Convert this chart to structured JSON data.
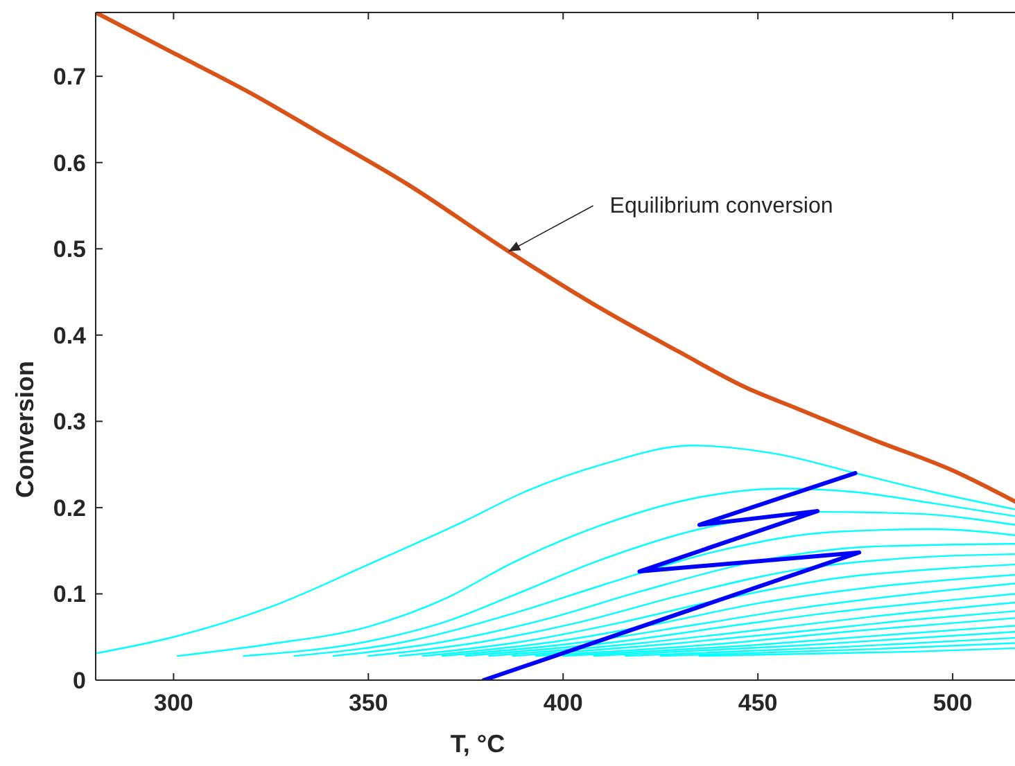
{
  "chart_data": {
    "type": "line",
    "xlabel": "T, °C",
    "ylabel": "Conversion",
    "xlim": [
      280,
      516
    ],
    "ylim": [
      0,
      0.774
    ],
    "xticks": [
      300,
      350,
      400,
      450,
      500
    ],
    "yticks": [
      0,
      0.1,
      0.2,
      0.3,
      0.4,
      0.5,
      0.6,
      0.7
    ],
    "grid": false,
    "marker": "none",
    "line_style": "solid",
    "annotations": [
      {
        "text": "Equilibrium conversion",
        "x": 386,
        "y": 0.497
      }
    ],
    "series": [
      {
        "color": "#00ffff",
        "x": [
          280,
          300,
          325,
          350,
          375,
          390,
          410,
          433,
          455,
          475,
          495,
          516
        ],
        "values": [
          0.031,
          0.05,
          0.085,
          0.134,
          0.185,
          0.218,
          0.25,
          0.272,
          0.262,
          0.24,
          0.218,
          0.198
        ]
      },
      {
        "color": "#00ffff",
        "x": [
          301,
          325,
          350,
          370,
          387,
          410,
          435,
          456,
          475,
          495,
          516
        ],
        "values": [
          0.028,
          0.042,
          0.062,
          0.095,
          0.136,
          0.18,
          0.212,
          0.222,
          0.218,
          0.205,
          0.19
        ]
      },
      {
        "color": "#00ffff",
        "x": [
          318,
          350,
          370,
          387,
          410,
          435,
          466,
          490,
          516
        ],
        "values": [
          0.028,
          0.045,
          0.068,
          0.098,
          0.14,
          0.175,
          0.195,
          0.193,
          0.18
        ]
      },
      {
        "color": "#00ffff",
        "x": [
          331,
          360,
          387,
          410,
          440,
          470,
          495,
          516
        ],
        "values": [
          0.028,
          0.045,
          0.077,
          0.11,
          0.15,
          0.172,
          0.175,
          0.168
        ]
      },
      {
        "color": "#00ffff",
        "x": [
          341,
          370,
          395,
          420,
          450,
          480,
          516
        ],
        "values": [
          0.028,
          0.045,
          0.07,
          0.103,
          0.138,
          0.155,
          0.158
        ]
      },
      {
        "color": "#00ffff",
        "x": [
          350,
          380,
          405,
          430,
          460,
          490,
          516
        ],
        "values": [
          0.028,
          0.045,
          0.068,
          0.098,
          0.128,
          0.142,
          0.146
        ]
      },
      {
        "color": "#00ffff",
        "x": [
          358,
          390,
          415,
          440,
          470,
          500,
          516
        ],
        "values": [
          0.028,
          0.045,
          0.067,
          0.093,
          0.118,
          0.13,
          0.134
        ]
      },
      {
        "color": "#00ffff",
        "x": [
          364,
          400,
          425,
          450,
          480,
          516
        ],
        "values": [
          0.028,
          0.046,
          0.066,
          0.089,
          0.108,
          0.122
        ]
      },
      {
        "color": "#00ffff",
        "x": [
          369,
          405,
          435,
          460,
          490,
          516
        ],
        "values": [
          0.028,
          0.044,
          0.065,
          0.083,
          0.1,
          0.112
        ]
      },
      {
        "color": "#00ffff",
        "x": [
          375,
          415,
          445,
          470,
          500,
          516
        ],
        "values": [
          0.028,
          0.045,
          0.064,
          0.079,
          0.093,
          0.1
        ]
      },
      {
        "color": "#00ffff",
        "x": [
          381,
          420,
          450,
          480,
          516
        ],
        "values": [
          0.028,
          0.043,
          0.058,
          0.074,
          0.09
        ]
      },
      {
        "color": "#00ffff",
        "x": [
          387,
          430,
          460,
          490,
          516
        ],
        "values": [
          0.028,
          0.043,
          0.056,
          0.07,
          0.08
        ]
      },
      {
        "color": "#00ffff",
        "x": [
          393,
          440,
          475,
          516
        ],
        "values": [
          0.028,
          0.042,
          0.057,
          0.072
        ]
      },
      {
        "color": "#00ffff",
        "x": [
          400,
          450,
          485,
          516
        ],
        "values": [
          0.028,
          0.041,
          0.053,
          0.063
        ]
      },
      {
        "color": "#00ffff",
        "x": [
          408,
          460,
          516
        ],
        "values": [
          0.028,
          0.04,
          0.056
        ]
      },
      {
        "color": "#00ffff",
        "x": [
          416,
          470,
          516
        ],
        "values": [
          0.028,
          0.038,
          0.049
        ]
      },
      {
        "color": "#00ffff",
        "x": [
          425,
          480,
          516
        ],
        "values": [
          0.028,
          0.036,
          0.043
        ]
      },
      {
        "color": "#00ffff",
        "x": [
          435,
          490,
          516
        ],
        "values": [
          0.028,
          0.033,
          0.037
        ]
      },
      {
        "color": "#d95319",
        "x": [
          280,
          300,
          320,
          338,
          360,
          386,
          410,
          430,
          447,
          460,
          480,
          500,
          516
        ],
        "values": [
          0.774,
          0.727,
          0.68,
          0.633,
          0.575,
          0.497,
          0.43,
          0.38,
          0.339,
          0.315,
          0.278,
          0.243,
          0.207
        ]
      },
      {
        "color": "#0000ff",
        "x": [
          379.6,
          476,
          419.6,
          465.3,
          435,
          475
        ],
        "values": [
          0,
          0.148,
          0.126,
          0.196,
          0.18,
          0.24
        ]
      }
    ]
  }
}
